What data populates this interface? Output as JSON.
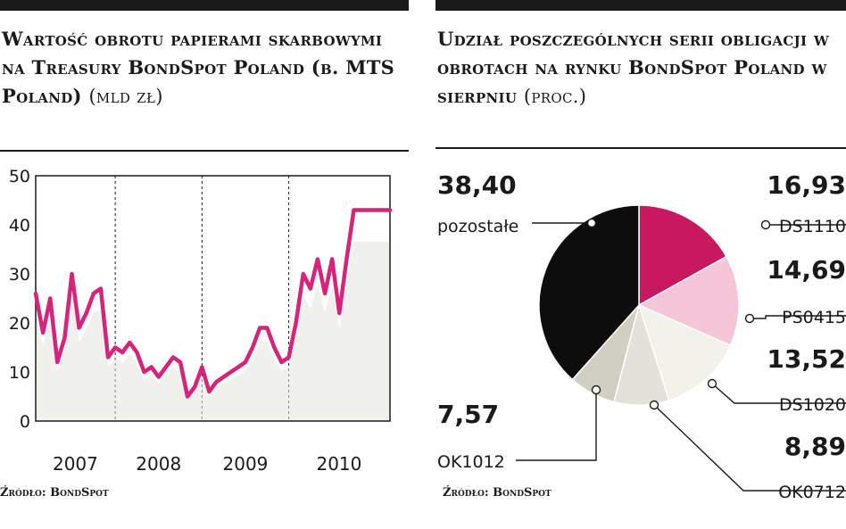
{
  "chart_data": [
    {
      "type": "line",
      "title": "Wartość obrotu papierami skarbowymi na Treasury BondSpot Poland (b. MTS Poland)",
      "unit": "(mld zł)",
      "ylim": [
        0,
        50
      ],
      "y_ticks": [
        "0",
        "10",
        "20",
        "30",
        "40",
        "50"
      ],
      "x_labels": [
        "2007",
        "2008",
        "2009",
        "2010"
      ],
      "x_range": [
        2006.583,
        2010.667
      ],
      "grid": "vertical dashed at year boundaries",
      "series": [
        {
          "color": "#d6247a",
          "x": [
            2006.583,
            2006.667,
            2006.75,
            2006.833,
            2006.917,
            2007.0,
            2007.083,
            2007.167,
            2007.25,
            2007.333,
            2007.417,
            2007.5,
            2007.583,
            2007.667,
            2007.75,
            2007.833,
            2007.917,
            2008.0,
            2008.083,
            2008.167,
            2008.25,
            2008.333,
            2008.417,
            2008.5,
            2008.583,
            2008.667,
            2008.75,
            2008.833,
            2008.917,
            2009.0,
            2009.083,
            2009.167,
            2009.25,
            2009.333,
            2009.417,
            2009.5,
            2009.583,
            2009.667,
            2009.75,
            2009.833,
            2009.917,
            2010.0,
            2010.083,
            2010.167,
            2010.25,
            2010.333,
            2010.417,
            2010.5,
            2010.583,
            2010.667
          ],
          "y": [
            26,
            18,
            25,
            12,
            17,
            30,
            19,
            22,
            26,
            27,
            13,
            15,
            14,
            16,
            14,
            10,
            11,
            9,
            11,
            13,
            12,
            5,
            7,
            11,
            6,
            8,
            9,
            10,
            11,
            12,
            15,
            19,
            19,
            15,
            12,
            13,
            20,
            30,
            27,
            33,
            26,
            33,
            22,
            33,
            43,
            43,
            43,
            43,
            43,
            43
          ]
        }
      ]
    },
    {
      "type": "pie",
      "title": "Udział poszczególnych serii obligacji w obrotach na rynku BondSpot Poland w sierpniu",
      "unit": "(proc.)",
      "slices": [
        {
          "label": "DS1110",
          "value": 16.93,
          "value_text": "16,93",
          "color": "#c8185f"
        },
        {
          "label": "PS0415",
          "value": 14.69,
          "value_text": "14,69",
          "color": "#f5c6d8"
        },
        {
          "label": "DS1020",
          "value": 13.52,
          "value_text": "13,52",
          "color": "#f2f1ea"
        },
        {
          "label": "OK0712",
          "value": 8.89,
          "value_text": "8,89",
          "color": "#e3e2d8"
        },
        {
          "label": "OK1012",
          "value": 7.57,
          "value_text": "7,57",
          "color": "#d0cfc3"
        },
        {
          "label": "pozostałe",
          "value": 38.4,
          "value_text": "38,40",
          "color": "#0d0d0d"
        }
      ]
    }
  ],
  "left_title": "Wartość obrotu papierami skarbowymi na Treasury BondSpot Poland (b. MTS Poland)",
  "left_unit": "(mld zł)",
  "right_title": "Udział poszczególnych serii obligacji w obrotach na rynku BondSpot Poland w sierpniu",
  "right_unit": "(proc.)",
  "source_left": "Źródło: BondSpot",
  "source_right": "Źródło: BondSpot",
  "colors": {
    "accent": "#d6247a",
    "ink": "#1a1a1a",
    "area": "#e4e3dc"
  }
}
